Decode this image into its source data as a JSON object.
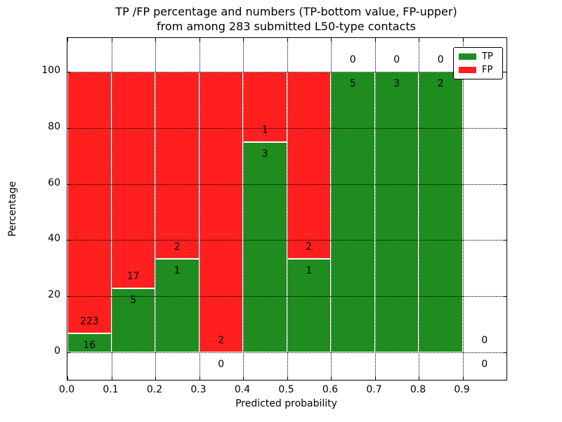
{
  "figure": {
    "title_line1": "TP /FP percentage and numbers (TP-bottom value, FP-upper)",
    "title_line2": "from among 283 submitted L50-type contacts"
  },
  "axes": {
    "xlabel": "Predicted probability",
    "ylabel": "Percentage",
    "x_tick_labels": [
      "0.0",
      "0.1",
      "0.2",
      "0.3",
      "0.4",
      "0.5",
      "0.6",
      "0.7",
      "0.8",
      "0.9"
    ],
    "y_tick_labels": [
      "0",
      "20",
      "40",
      "60",
      "80",
      "100"
    ]
  },
  "legend": {
    "items": [
      {
        "label": "TP",
        "color": "#1e8c1e"
      },
      {
        "label": "FP",
        "color": "#ff1f1f"
      }
    ]
  },
  "colors": {
    "tp_green": "#1e8c1e",
    "fp_red": "#ff1f1f",
    "bar_edge": "#ffffff",
    "frame": "#000000",
    "background": "#ffffff"
  },
  "chart_data": {
    "type": "bar",
    "stacked": true,
    "title": "TP /FP percentage and numbers (TP-bottom value, FP-upper) from among 283 submitted L50-type contacts",
    "xlabel": "Predicted probability",
    "ylabel": "Percentage",
    "xlim": [
      0.0,
      1.0
    ],
    "ylim": [
      -10,
      112
    ],
    "y_ticks": [
      0,
      20,
      40,
      60,
      80,
      100
    ],
    "x_ticks": [
      0.0,
      0.1,
      0.2,
      0.3,
      0.4,
      0.5,
      0.6,
      0.7,
      0.8,
      0.9
    ],
    "bin_width": 0.1,
    "grid": true,
    "legend_position": "upper right",
    "series": [
      {
        "name": "TP",
        "color": "#1e8c1e",
        "values": [
          16,
          5,
          1,
          0,
          3,
          1,
          5,
          3,
          2,
          0
        ]
      },
      {
        "name": "FP",
        "color": "#ff1f1f",
        "values": [
          223,
          17,
          2,
          2,
          1,
          2,
          0,
          0,
          0,
          0
        ]
      }
    ],
    "bins": [
      {
        "x0": 0.0,
        "x1": 0.1,
        "tp": 16,
        "fp": 223
      },
      {
        "x0": 0.1,
        "x1": 0.2,
        "tp": 5,
        "fp": 17
      },
      {
        "x0": 0.2,
        "x1": 0.3,
        "tp": 1,
        "fp": 2
      },
      {
        "x0": 0.3,
        "x1": 0.4,
        "tp": 0,
        "fp": 2
      },
      {
        "x0": 0.4,
        "x1": 0.5,
        "tp": 3,
        "fp": 1
      },
      {
        "x0": 0.5,
        "x1": 0.6,
        "tp": 1,
        "fp": 2
      },
      {
        "x0": 0.6,
        "x1": 0.7,
        "tp": 5,
        "fp": 0
      },
      {
        "x0": 0.7,
        "x1": 0.8,
        "tp": 3,
        "fp": 0
      },
      {
        "x0": 0.8,
        "x1": 0.9,
        "tp": 2,
        "fp": 0
      },
      {
        "x0": 0.9,
        "x1": 1.0,
        "tp": 0,
        "fp": 0
      }
    ],
    "total_contacts": 283
  }
}
